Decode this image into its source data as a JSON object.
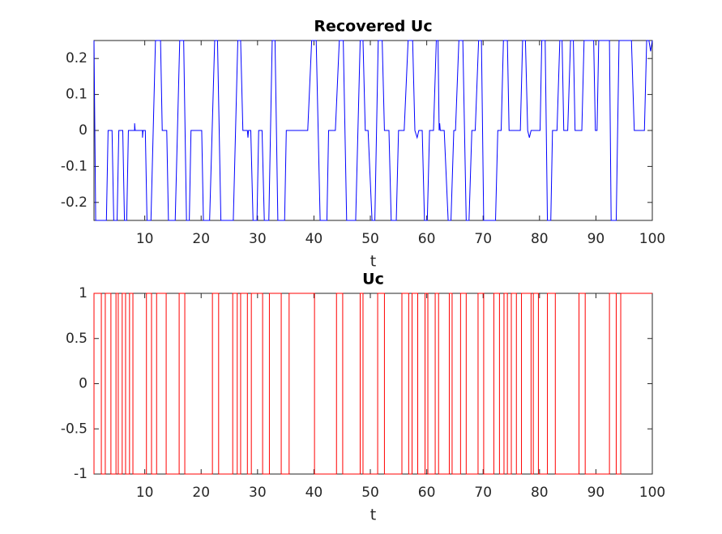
{
  "chart_data": [
    {
      "type": "line",
      "title": "Recovered Uc",
      "xlabel": "t",
      "color": "#0000ff",
      "xlim": [
        1,
        100
      ],
      "xticks": [
        10,
        20,
        30,
        40,
        50,
        60,
        70,
        80,
        90,
        100
      ],
      "ylim": [
        -0.25,
        0.25
      ],
      "yticks": [
        -0.2,
        -0.1,
        0,
        0.1,
        0.2
      ],
      "x": [
        1,
        1.3,
        3.2,
        3.5,
        4.2,
        4.5,
        5.1,
        5.4,
        6.1,
        6.4,
        6.8,
        7.1,
        8.2,
        8.2,
        8.3,
        9.6,
        9.6,
        9.7,
        10.1,
        10.4,
        11.1,
        11.9,
        12.8,
        13.1,
        13.9,
        14.2,
        15.4,
        16.2,
        16.9,
        17.4,
        17.9,
        18.2,
        20.1,
        20.4,
        21.5,
        22.4,
        22.9,
        23.5,
        25.7,
        26.5,
        27,
        27.4,
        28.2,
        28.3,
        28.4,
        28.8,
        29.2,
        29.9,
        30.2,
        30.8,
        31.2,
        32,
        32.6,
        33.1,
        33.6,
        34.8,
        35.1,
        38.9,
        39.6,
        40.4,
        41.1,
        42.3,
        42.6,
        43.8,
        44.5,
        45.2,
        45.8,
        47.4,
        48.2,
        48.7,
        49.1,
        49.6,
        50.3,
        50.8,
        51.4,
        52.1,
        52.5,
        53.3,
        53.7,
        54.6,
        55,
        56,
        56.7,
        57.5,
        57.9,
        58.3,
        58.6,
        59.2,
        59.6,
        60.1,
        60.5,
        61.2,
        61.7,
        62,
        62.2,
        62.3,
        62.4,
        63.1,
        63.8,
        64.3,
        64.8,
        65.1,
        65.7,
        66.4,
        67,
        67.5,
        68,
        68.6,
        69.2,
        69.7,
        70.1,
        72.2,
        72.6,
        73.2,
        73.6,
        74.3,
        74.6,
        76.6,
        77,
        77.5,
        77.9,
        78.2,
        78.5,
        80.1,
        80.4,
        81,
        81.4,
        82,
        82.3,
        83.1,
        83.6,
        84,
        84.3,
        85,
        85.5,
        86,
        86.3,
        87.5,
        87.9,
        89.6,
        89.9,
        90.2,
        90.5,
        92.4,
        92.7,
        93.6,
        94.1,
        96.3,
        96.8,
        98.6,
        99,
        99.4,
        99.7,
        100
      ],
      "values": [
        0.25,
        -0.25,
        -0.25,
        0,
        0,
        -0.25,
        -0.25,
        0,
        0,
        -0.25,
        -0.25,
        0,
        0,
        0.02,
        0,
        0,
        -0.02,
        0,
        0,
        -0.25,
        -0.25,
        0.25,
        0.25,
        0,
        0,
        -0.25,
        -0.25,
        0.25,
        0.25,
        -0.25,
        -0.25,
        0,
        0,
        -0.25,
        -0.25,
        0.25,
        0.25,
        -0.25,
        -0.25,
        0.25,
        0.25,
        0,
        0,
        -0.02,
        0,
        0,
        -0.25,
        -0.25,
        0,
        0,
        -0.25,
        -0.25,
        0.25,
        0.25,
        -0.25,
        -0.25,
        0,
        0,
        0.25,
        0.25,
        -0.25,
        -0.25,
        0,
        0,
        0.25,
        0.25,
        -0.25,
        -0.25,
        0.25,
        0.25,
        0,
        0,
        -0.25,
        -0.25,
        0.25,
        0.25,
        0,
        0,
        -0.25,
        -0.25,
        0,
        0,
        0.25,
        0.25,
        0,
        -0.02,
        0,
        0,
        -0.25,
        -0.25,
        0,
        0,
        0.25,
        0.25,
        0,
        0.02,
        0,
        0,
        -0.25,
        -0.25,
        0,
        0,
        0.25,
        0.25,
        -0.25,
        -0.25,
        0,
        0,
        0.25,
        0.25,
        -0.25,
        -0.25,
        0,
        0,
        0.25,
        0.25,
        0,
        0,
        0.25,
        0.25,
        0,
        -0.02,
        0,
        0,
        0.25,
        0.25,
        -0.25,
        -0.25,
        0,
        0,
        0.25,
        0.25,
        0,
        0,
        0.25,
        0.25,
        0,
        0,
        0.25,
        0.25,
        0,
        0,
        0.25,
        0.25,
        -0.25,
        -0.25,
        0.25,
        0.25,
        0,
        0,
        0.25,
        0.25,
        0.22,
        0.25
      ]
    },
    {
      "type": "line",
      "title": "Uc",
      "xlabel": "t",
      "color": "#ff0000",
      "xlim": [
        1,
        100
      ],
      "xticks": [
        10,
        20,
        30,
        40,
        50,
        60,
        70,
        80,
        90,
        100
      ],
      "ylim": [
        -1,
        1
      ],
      "yticks": [
        -1,
        -0.5,
        0,
        0.5,
        1
      ],
      "x": [
        1,
        1,
        2.3,
        2.3,
        3.0,
        3.0,
        4.0,
        4.0,
        4.9,
        4.9,
        5.3,
        5.3,
        6.0,
        6.0,
        6.6,
        6.6,
        7.3,
        7.3,
        7.9,
        7.9,
        10.3,
        10.3,
        11.2,
        11.2,
        12.1,
        12.1,
        13.8,
        13.8,
        16.1,
        16.1,
        17.1,
        17.1,
        22.0,
        22.0,
        23.1,
        23.1,
        25.6,
        25.6,
        26.4,
        26.4,
        27.0,
        27.0,
        28.2,
        28.2,
        28.9,
        28.9,
        30.9,
        30.9,
        32.1,
        32.1,
        34.2,
        34.2,
        35.6,
        35.6,
        40.1,
        40.1,
        44.0,
        44.0,
        45.1,
        45.1,
        48.2,
        48.2,
        48.7,
        48.7,
        51.3,
        51.3,
        52.5,
        52.5,
        55.6,
        55.6,
        56.8,
        56.8,
        57.4,
        57.4,
        58.4,
        58.4,
        59.7,
        59.7,
        60.2,
        60.2,
        61.5,
        61.5,
        62.1,
        62.1,
        64.0,
        64.0,
        64.5,
        64.5,
        66.0,
        66.0,
        67.0,
        67.0,
        69.1,
        69.1,
        70.1,
        70.1,
        71.9,
        71.9,
        72.9,
        72.9,
        73.7,
        73.7,
        74.3,
        74.3,
        75.0,
        75.0,
        75.9,
        75.9,
        76.8,
        76.8,
        78.5,
        78.5,
        78.9,
        78.9,
        79.8,
        79.8,
        81.4,
        81.4,
        82.8,
        82.8,
        87.0,
        87.0,
        88.1,
        88.1,
        92.4,
        92.4,
        93.6,
        93.6,
        94.4,
        94.4,
        100
      ],
      "values": [
        -1,
        1,
        1,
        -1,
        -1,
        1,
        1,
        -1,
        -1,
        1,
        1,
        -1,
        -1,
        1,
        1,
        -1,
        -1,
        1,
        1,
        -1,
        -1,
        1,
        1,
        -1,
        -1,
        1,
        1,
        -1,
        -1,
        1,
        1,
        -1,
        -1,
        1,
        1,
        -1,
        -1,
        1,
        1,
        -1,
        -1,
        1,
        1,
        -1,
        -1,
        1,
        1,
        -1,
        -1,
        1,
        1,
        -1,
        -1,
        1,
        1,
        -1,
        -1,
        1,
        1,
        -1,
        -1,
        1,
        1,
        -1,
        -1,
        1,
        1,
        -1,
        -1,
        1,
        1,
        -1,
        -1,
        1,
        1,
        -1,
        -1,
        1,
        1,
        -1,
        -1,
        1,
        1,
        -1,
        -1,
        1,
        1,
        -1,
        -1,
        1,
        1,
        -1,
        -1,
        1,
        1,
        -1,
        -1,
        1,
        1,
        -1,
        -1,
        1,
        1,
        -1,
        -1,
        1,
        1,
        -1,
        -1,
        1,
        1,
        -1,
        -1,
        1,
        1,
        -1,
        -1,
        1,
        1,
        -1,
        -1,
        1,
        1,
        -1,
        -1,
        1,
        1,
        -1,
        -1,
        1,
        1
      ]
    }
  ]
}
